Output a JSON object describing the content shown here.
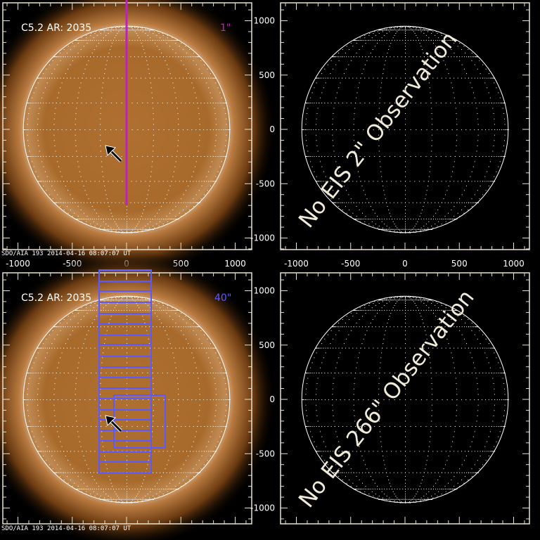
{
  "colors": {
    "axis": "#e8e2d0",
    "slit_1": "#c020c0",
    "raster_40": "#5a5aff",
    "sun_core": "#f2d0a0",
    "sun_limb": "#8a4a12"
  },
  "panels": [
    {
      "id": "top-left",
      "type": "image",
      "event_label": "C5.2 AR: 2035",
      "slit_label": "1\"",
      "slit_color": "#c020c0",
      "footer": "SDO/AIA 193   2014-04-16 08:07:07 UT",
      "x_ticks": [
        "-1000",
        "-500",
        "0",
        "500",
        "1000"
      ],
      "y_ticks": []
    },
    {
      "id": "top-right",
      "type": "empty",
      "message": "No EIS 2\" Observation",
      "x_ticks": [
        "-1000",
        "-500",
        "0",
        "500",
        "1000"
      ],
      "y_ticks": [
        "1000",
        "500",
        "0",
        "-500",
        "-1000"
      ]
    },
    {
      "id": "bottom-left",
      "type": "image",
      "event_label": "C5.2 AR: 2035",
      "slit_label": "40\"",
      "slit_color": "#5a5aff",
      "footer": "SDO/AIA 193   2014-04-16 08:07:07 UT",
      "x_ticks": [],
      "y_ticks": []
    },
    {
      "id": "bottom-right",
      "type": "empty",
      "message": "No EIS 266\" Observation",
      "x_ticks": [],
      "y_ticks": [
        "1000",
        "500",
        "0",
        "-500",
        "-1000"
      ]
    }
  ]
}
